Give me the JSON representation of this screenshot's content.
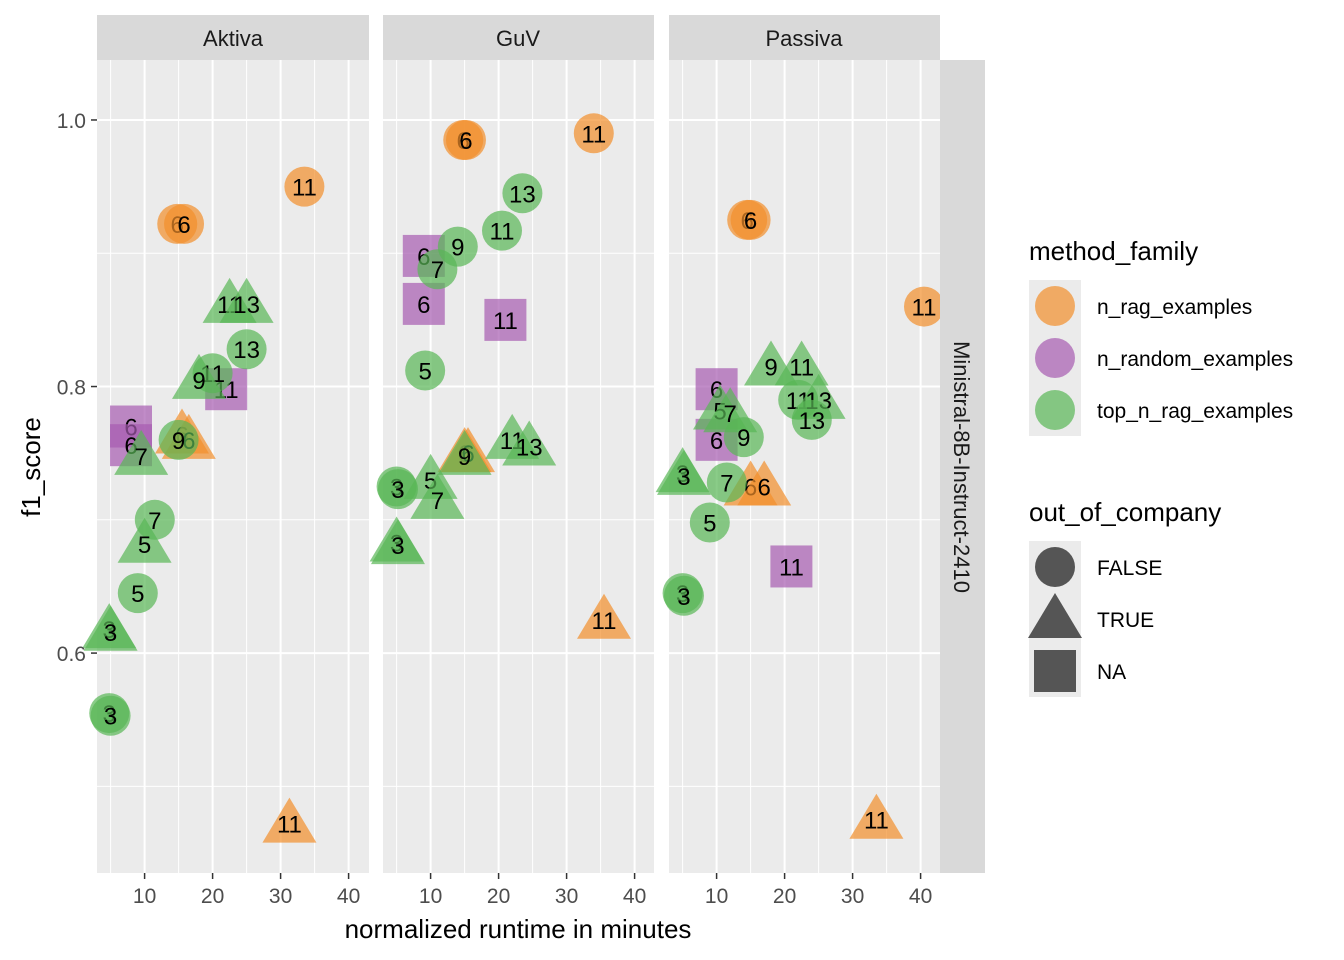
{
  "colors": {
    "n_rag_examples": "#F28E2B",
    "n_random_examples": "#A65BB0",
    "top_n_rag_examples": "#59B655",
    "panel_bg": "#EBEBEB",
    "strip_bg": "#D9D9D9",
    "grid": "#FFFFFF"
  },
  "chart_data": {
    "type": "scatter",
    "xlabel": "normalized runtime in minutes",
    "ylabel": "f1_score",
    "xlim": [
      3,
      43
    ],
    "ylim": [
      0.435,
      1.045
    ],
    "x_ticks": [
      10,
      20,
      30,
      40
    ],
    "y_ticks": [
      0.6,
      0.8,
      1.0
    ],
    "y_tick_labels": [
      "0.6",
      "0.8",
      "1.0"
    ],
    "grid": true,
    "row_strip": "Ministral-8B-Instruct-2410",
    "legend_position": "right",
    "legends": [
      {
        "title": "method_family",
        "kind": "color",
        "entries": [
          "n_rag_examples",
          "n_random_examples",
          "top_n_rag_examples"
        ]
      },
      {
        "title": "out_of_company",
        "kind": "shape",
        "entries": [
          {
            "label": "FALSE",
            "shape": "circle"
          },
          {
            "label": "TRUE",
            "shape": "triangle"
          },
          {
            "label": "NA",
            "shape": "square"
          }
        ]
      }
    ],
    "panels": [
      {
        "title": "Aktiva",
        "points": [
          {
            "x": 33.5,
            "y": 0.95,
            "label": "11",
            "method": "n_rag_examples",
            "shape": "circle"
          },
          {
            "x": 14.8,
            "y": 0.922,
            "label": "6",
            "method": "n_rag_examples",
            "shape": "circle"
          },
          {
            "x": 15.8,
            "y": 0.922,
            "label": "6",
            "method": "n_rag_examples",
            "shape": "circle"
          },
          {
            "x": 15.5,
            "y": 0.764,
            "label": "6",
            "method": "n_rag_examples",
            "shape": "triangle"
          },
          {
            "x": 16.5,
            "y": 0.76,
            "label": "6",
            "method": "n_rag_examples",
            "shape": "triangle"
          },
          {
            "x": 31.3,
            "y": 0.472,
            "label": "11",
            "method": "n_rag_examples",
            "shape": "triangle"
          },
          {
            "x": 8.0,
            "y": 0.77,
            "label": "6",
            "method": "n_random_examples",
            "shape": "square"
          },
          {
            "x": 8.0,
            "y": 0.756,
            "label": "6",
            "method": "n_random_examples",
            "shape": "square"
          },
          {
            "x": 22.0,
            "y": 0.798,
            "label": "11",
            "method": "n_random_examples",
            "shape": "square"
          },
          {
            "x": 22.5,
            "y": 0.862,
            "label": "11",
            "method": "top_n_rag_examples",
            "shape": "triangle"
          },
          {
            "x": 25.0,
            "y": 0.862,
            "label": "13",
            "method": "top_n_rag_examples",
            "shape": "triangle"
          },
          {
            "x": 25.0,
            "y": 0.828,
            "label": "13",
            "method": "top_n_rag_examples",
            "shape": "circle"
          },
          {
            "x": 20.0,
            "y": 0.81,
            "label": "11",
            "method": "top_n_rag_examples",
            "shape": "circle"
          },
          {
            "x": 18.0,
            "y": 0.805,
            "label": "9",
            "method": "top_n_rag_examples",
            "shape": "triangle"
          },
          {
            "x": 15.0,
            "y": 0.76,
            "label": "9",
            "method": "top_n_rag_examples",
            "shape": "circle"
          },
          {
            "x": 9.5,
            "y": 0.748,
            "label": "7",
            "method": "top_n_rag_examples",
            "shape": "triangle"
          },
          {
            "x": 11.5,
            "y": 0.7,
            "label": "7",
            "method": "top_n_rag_examples",
            "shape": "circle"
          },
          {
            "x": 10.0,
            "y": 0.682,
            "label": "5",
            "method": "top_n_rag_examples",
            "shape": "triangle"
          },
          {
            "x": 9.0,
            "y": 0.645,
            "label": "5",
            "method": "top_n_rag_examples",
            "shape": "circle"
          },
          {
            "x": 4.8,
            "y": 0.618,
            "label": "3",
            "method": "top_n_rag_examples",
            "shape": "triangle"
          },
          {
            "x": 5.0,
            "y": 0.616,
            "label": "3",
            "method": "top_n_rag_examples",
            "shape": "triangle"
          },
          {
            "x": 4.8,
            "y": 0.555,
            "label": "3",
            "method": "top_n_rag_examples",
            "shape": "circle"
          },
          {
            "x": 5.0,
            "y": 0.553,
            "label": "3",
            "method": "top_n_rag_examples",
            "shape": "circle"
          }
        ]
      },
      {
        "title": "GuV",
        "points": [
          {
            "x": 14.8,
            "y": 0.985,
            "label": "6",
            "method": "n_rag_examples",
            "shape": "circle"
          },
          {
            "x": 15.2,
            "y": 0.985,
            "label": "6",
            "method": "n_rag_examples",
            "shape": "circle"
          },
          {
            "x": 34.0,
            "y": 0.99,
            "label": "11",
            "method": "n_rag_examples",
            "shape": "circle"
          },
          {
            "x": 15.0,
            "y": 0.75,
            "label": "6",
            "method": "n_rag_examples",
            "shape": "triangle"
          },
          {
            "x": 15.5,
            "y": 0.75,
            "label": "6",
            "method": "n_rag_examples",
            "shape": "triangle"
          },
          {
            "x": 35.5,
            "y": 0.625,
            "label": "11",
            "method": "n_rag_examples",
            "shape": "triangle"
          },
          {
            "x": 9.0,
            "y": 0.898,
            "label": "6",
            "method": "n_random_examples",
            "shape": "square"
          },
          {
            "x": 9.0,
            "y": 0.862,
            "label": "6",
            "method": "n_random_examples",
            "shape": "square"
          },
          {
            "x": 21.0,
            "y": 0.85,
            "label": "11",
            "method": "n_random_examples",
            "shape": "square"
          },
          {
            "x": 23.5,
            "y": 0.945,
            "label": "13",
            "method": "top_n_rag_examples",
            "shape": "circle"
          },
          {
            "x": 20.5,
            "y": 0.917,
            "label": "11",
            "method": "top_n_rag_examples",
            "shape": "circle"
          },
          {
            "x": 14.0,
            "y": 0.905,
            "label": "9",
            "method": "top_n_rag_examples",
            "shape": "circle"
          },
          {
            "x": 11.0,
            "y": 0.888,
            "label": "7",
            "method": "top_n_rag_examples",
            "shape": "circle"
          },
          {
            "x": 9.2,
            "y": 0.812,
            "label": "5",
            "method": "top_n_rag_examples",
            "shape": "circle"
          },
          {
            "x": 22.0,
            "y": 0.76,
            "label": "11",
            "method": "top_n_rag_examples",
            "shape": "triangle"
          },
          {
            "x": 24.5,
            "y": 0.755,
            "label": "13",
            "method": "top_n_rag_examples",
            "shape": "triangle"
          },
          {
            "x": 15.0,
            "y": 0.748,
            "label": "9",
            "method": "top_n_rag_examples",
            "shape": "triangle"
          },
          {
            "x": 10.0,
            "y": 0.73,
            "label": "5",
            "method": "top_n_rag_examples",
            "shape": "triangle"
          },
          {
            "x": 11.0,
            "y": 0.715,
            "label": "7",
            "method": "top_n_rag_examples",
            "shape": "triangle"
          },
          {
            "x": 5.0,
            "y": 0.725,
            "label": "3",
            "method": "top_n_rag_examples",
            "shape": "circle"
          },
          {
            "x": 5.2,
            "y": 0.723,
            "label": "3",
            "method": "top_n_rag_examples",
            "shape": "circle"
          },
          {
            "x": 5.0,
            "y": 0.683,
            "label": "3",
            "method": "top_n_rag_examples",
            "shape": "triangle"
          },
          {
            "x": 5.2,
            "y": 0.681,
            "label": "3",
            "method": "top_n_rag_examples",
            "shape": "triangle"
          }
        ]
      },
      {
        "title": "Passiva",
        "points": [
          {
            "x": 14.5,
            "y": 0.925,
            "label": "6",
            "method": "n_rag_examples",
            "shape": "circle"
          },
          {
            "x": 15.0,
            "y": 0.925,
            "label": "6",
            "method": "n_rag_examples",
            "shape": "circle"
          },
          {
            "x": 40.5,
            "y": 0.86,
            "label": "11",
            "method": "n_rag_examples",
            "shape": "circle"
          },
          {
            "x": 15.0,
            "y": 0.725,
            "label": "6",
            "method": "n_rag_examples",
            "shape": "triangle"
          },
          {
            "x": 17.0,
            "y": 0.725,
            "label": "6",
            "method": "n_rag_examples",
            "shape": "triangle"
          },
          {
            "x": 33.5,
            "y": 0.475,
            "label": "11",
            "method": "n_rag_examples",
            "shape": "triangle"
          },
          {
            "x": 10.0,
            "y": 0.798,
            "label": "6",
            "method": "n_random_examples",
            "shape": "square"
          },
          {
            "x": 10.0,
            "y": 0.76,
            "label": "6",
            "method": "n_random_examples",
            "shape": "square"
          },
          {
            "x": 21.0,
            "y": 0.665,
            "label": "11",
            "method": "n_random_examples",
            "shape": "square"
          },
          {
            "x": 22.5,
            "y": 0.815,
            "label": "11",
            "method": "top_n_rag_examples",
            "shape": "triangle"
          },
          {
            "x": 18.0,
            "y": 0.815,
            "label": "9",
            "method": "top_n_rag_examples",
            "shape": "triangle"
          },
          {
            "x": 22.0,
            "y": 0.79,
            "label": "11",
            "method": "top_n_rag_examples",
            "shape": "circle"
          },
          {
            "x": 25.0,
            "y": 0.79,
            "label": "13",
            "method": "top_n_rag_examples",
            "shape": "triangle"
          },
          {
            "x": 24.0,
            "y": 0.775,
            "label": "13",
            "method": "top_n_rag_examples",
            "shape": "circle"
          },
          {
            "x": 10.5,
            "y": 0.782,
            "label": "5",
            "method": "top_n_rag_examples",
            "shape": "triangle"
          },
          {
            "x": 12.0,
            "y": 0.78,
            "label": "7",
            "method": "top_n_rag_examples",
            "shape": "triangle"
          },
          {
            "x": 14.0,
            "y": 0.762,
            "label": "9",
            "method": "top_n_rag_examples",
            "shape": "circle"
          },
          {
            "x": 11.5,
            "y": 0.728,
            "label": "7",
            "method": "top_n_rag_examples",
            "shape": "circle"
          },
          {
            "x": 9.0,
            "y": 0.698,
            "label": "5",
            "method": "top_n_rag_examples",
            "shape": "circle"
          },
          {
            "x": 5.0,
            "y": 0.735,
            "label": "3",
            "method": "top_n_rag_examples",
            "shape": "triangle"
          },
          {
            "x": 5.2,
            "y": 0.733,
            "label": "3",
            "method": "top_n_rag_examples",
            "shape": "triangle"
          },
          {
            "x": 5.0,
            "y": 0.645,
            "label": "3",
            "method": "top_n_rag_examples",
            "shape": "circle"
          },
          {
            "x": 5.2,
            "y": 0.643,
            "label": "3",
            "method": "top_n_rag_examples",
            "shape": "circle"
          }
        ]
      }
    ]
  }
}
